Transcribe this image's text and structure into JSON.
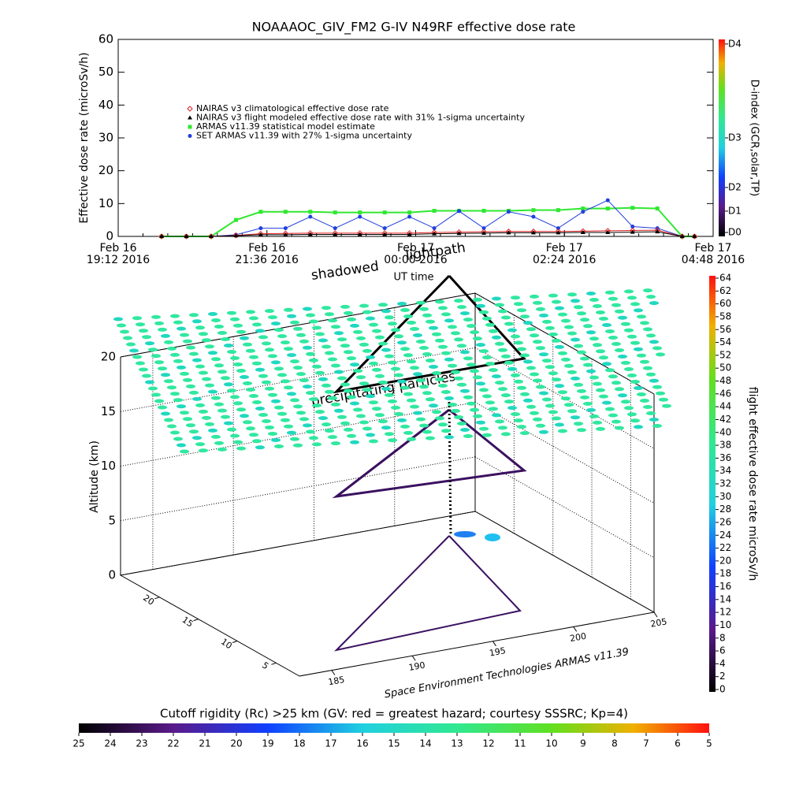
{
  "chart_data": [
    {
      "type": "line",
      "title": "NOAAAOC_GIV_FM2 G-IV   N49RF  effective dose rate",
      "y_label": "Effective dose rate (microSv/h)",
      "x_label": "UT time",
      "y2_label": "D-index (GCR,solar,TP)",
      "xlim": [
        19.2,
        28.8
      ],
      "xticks": [
        {
          "value": 19.2,
          "label": "Feb 16\n19:12 2016"
        },
        {
          "value": 21.6,
          "label": "Feb 16\n21:36 2016"
        },
        {
          "value": 24,
          "label": "Feb 17\n00:00 2016"
        },
        {
          "value": 26.4,
          "label": "Feb 17\n02:24 2016"
        },
        {
          "value": 28.8,
          "label": "Feb 17\n04:48 2016"
        }
      ],
      "ylim": [
        0,
        60
      ],
      "yticks": [
        0,
        10,
        20,
        30,
        40,
        50,
        60
      ],
      "y2lim": [
        0,
        60
      ],
      "y2ticks": [
        {
          "value": 1.2,
          "label": "D0"
        },
        {
          "value": 7.7,
          "label": "D1"
        },
        {
          "value": 14.9,
          "label": "D2"
        },
        {
          "value": 30,
          "label": "D3"
        },
        {
          "value": 58.6,
          "label": "D4"
        }
      ],
      "x": [
        19.9,
        20.3,
        20.7,
        21.1,
        21.5,
        21.9,
        22.3,
        22.7,
        23.1,
        23.5,
        23.9,
        24.3,
        24.7,
        25.1,
        25.5,
        25.9,
        26.3,
        26.7,
        27.1,
        27.5,
        27.9,
        28.3,
        28.5
      ],
      "series": [
        {
          "name": "NAIRAS v3 climatological effective dose rate",
          "color": "#e02020",
          "marker": "diamond",
          "values": [
            0,
            0,
            0,
            0.3,
            0.8,
            0.9,
            1,
            1,
            1,
            1,
            1,
            1.2,
            1.3,
            1.4,
            1.5,
            1.5,
            1.5,
            1.6,
            1.7,
            1.8,
            1.9,
            0,
            0
          ]
        },
        {
          "name": "NAIRAS v3 flight modeled effective dose rate with 31% 1-sigma uncertainty",
          "color": "#000000",
          "marker": "triangle",
          "values": [
            0,
            0,
            0,
            0.2,
            0.5,
            0.5,
            0.6,
            0.6,
            0.6,
            0.6,
            0.6,
            0.8,
            0.9,
            1,
            1.1,
            1.1,
            1.1,
            1.2,
            1.2,
            1.3,
            1.4,
            0,
            0
          ]
        },
        {
          "name": "ARMAS v11.39 statistical model estimate",
          "color": "#30e830",
          "marker": "square",
          "values": [
            0,
            0,
            0,
            5,
            7.5,
            7.5,
            7.5,
            7.3,
            7.3,
            7.3,
            7.3,
            7.8,
            7.8,
            7.8,
            7.8,
            8,
            8,
            8.5,
            8.5,
            8.7,
            8.5,
            0,
            0
          ]
        },
        {
          "name": "SET ARMAS v11.39 with 27% 1-sigma uncertainty",
          "color": "#2040e0",
          "marker": "circle",
          "values": [
            0,
            0,
            0,
            0.5,
            2.5,
            2.5,
            6,
            2.5,
            6,
            2.5,
            6,
            2.5,
            7.7,
            2.5,
            7.5,
            6,
            2.5,
            7.5,
            11,
            3,
            2.5,
            0,
            0
          ]
        }
      ]
    },
    {
      "type": "surface3d",
      "z_label": "Altitude (km)",
      "zlim": [
        0,
        20
      ],
      "zticks": [
        0,
        5,
        10,
        15,
        20
      ],
      "xlim": [
        183,
        205
      ],
      "xticks": [
        185,
        190,
        195,
        200,
        205
      ],
      "ylim": [
        2,
        25
      ],
      "yticks": [
        5,
        10,
        15,
        20
      ],
      "annotations": [
        "shadowed",
        "lightpath",
        "precipitating particles"
      ],
      "credit": "Space Environment Technologies ARMAS v11.39",
      "colorbar": {
        "label": "flight effective dose rate microSv/h",
        "lim": [
          0,
          64
        ],
        "ticks": [
          0,
          2,
          4,
          6,
          8,
          10,
          12,
          14,
          16,
          18,
          20,
          22,
          24,
          26,
          28,
          30,
          32,
          34,
          36,
          38,
          40,
          42,
          44,
          46,
          48,
          50,
          52,
          54,
          56,
          58,
          60,
          62,
          64
        ]
      },
      "rigidity_bar": {
        "title": "Cutoff rigidity (Rc) >25 km (GV: red = greatest hazard; courtesy SSSRC; Kp=4)",
        "lim": [
          25,
          5
        ],
        "ticks": [
          25,
          24,
          23,
          22,
          21,
          20,
          19,
          18,
          17,
          16,
          15,
          14,
          13,
          12,
          11,
          10,
          9,
          8,
          7,
          6,
          5
        ]
      }
    }
  ]
}
